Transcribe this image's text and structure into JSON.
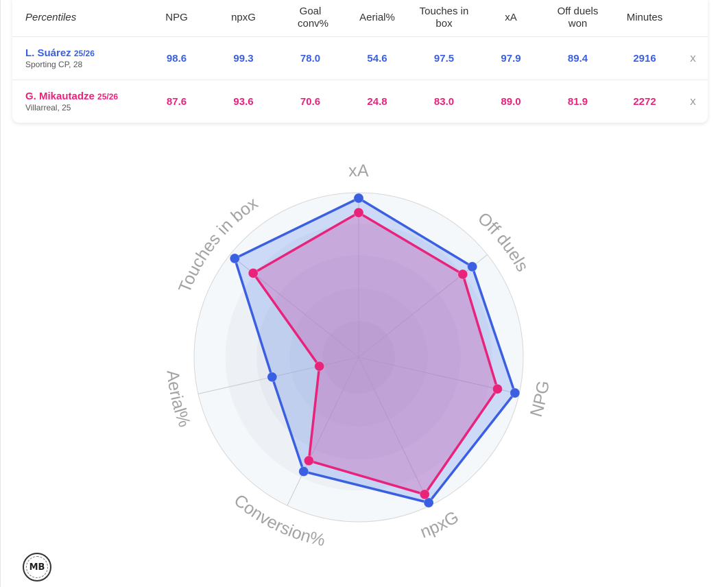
{
  "table": {
    "header_label": "Percentiles",
    "columns": [
      {
        "key": "npg",
        "label": "NPG"
      },
      {
        "key": "npxg",
        "label": "npxG"
      },
      {
        "key": "goal_conv",
        "label": "Goal conv%"
      },
      {
        "key": "aerial",
        "label": "Aerial%"
      },
      {
        "key": "touches_box",
        "label": "Touches in box"
      },
      {
        "key": "xa",
        "label": "xA"
      },
      {
        "key": "off_duels",
        "label": "Off duels won"
      },
      {
        "key": "minutes",
        "label": "Minutes"
      }
    ],
    "remove_label": "x",
    "rows": [
      {
        "name": "L. Suárez",
        "season": "25/26",
        "club": "Sporting CP, 28",
        "values": [
          "98.6",
          "99.3",
          "78.0",
          "54.6",
          "97.5",
          "97.9",
          "89.4",
          "2916"
        ]
      },
      {
        "name": "G. Mikautadze",
        "season": "25/26",
        "club": "Villarreal, 25",
        "values": [
          "87.6",
          "93.6",
          "70.6",
          "24.8",
          "83.0",
          "89.0",
          "81.9",
          "2272"
        ]
      }
    ]
  },
  "colors": {
    "player1": "#3a5fe0",
    "player2": "#e8237b"
  },
  "chart_data": {
    "type": "radar",
    "axes": [
      "xA",
      "Off duels",
      "NPG",
      "npxG",
      "Conversion%",
      "Aerial%",
      "Touches in box"
    ],
    "rlim": [
      0,
      100
    ],
    "series": [
      {
        "name": "L. Suárez",
        "values": [
          97.9,
          89.4,
          98.6,
          99.3,
          78.0,
          54.6,
          97.5
        ]
      },
      {
        "name": "G. Mikautadze",
        "values": [
          89.0,
          81.9,
          87.6,
          93.6,
          70.6,
          24.8,
          83.0
        ]
      }
    ]
  },
  "logo_text": "MB"
}
